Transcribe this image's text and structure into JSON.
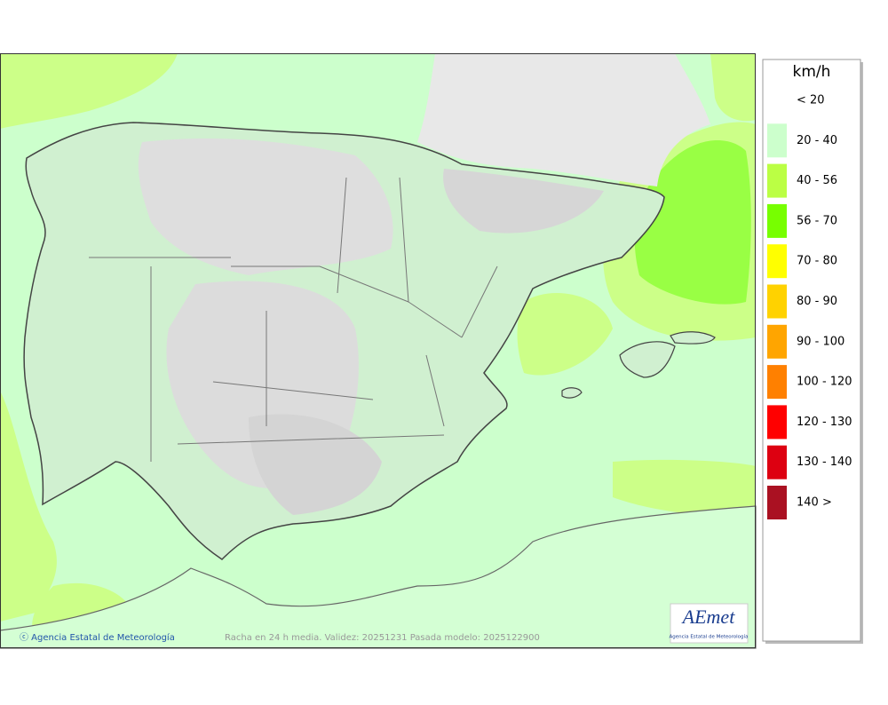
{
  "map": {
    "copyright": "ⓒ Agencia Estatal de Meteorología",
    "caption": "Racha en 24 h media. Validez: 20251231 Pasada modelo: 2025122900",
    "logo": {
      "text": "AEmet",
      "subtitle": "Agencia Estatal de Meteorología"
    }
  },
  "legend": {
    "title": "km/h",
    "items": [
      {
        "label": "< 20",
        "color": "#ffffff"
      },
      {
        "label": "20 - 40",
        "color": "#ccffcc"
      },
      {
        "label": "40 - 56",
        "color": "#bbff44"
      },
      {
        "label": "56 - 70",
        "color": "#77ff00"
      },
      {
        "label": "70 - 80",
        "color": "#ffff00"
      },
      {
        "label": "80 - 90",
        "color": "#ffd200"
      },
      {
        "label": "90 - 100",
        "color": "#ffa500"
      },
      {
        "label": "100 - 120",
        "color": "#ff8000"
      },
      {
        "label": "120 - 130",
        "color": "#ff0000"
      },
      {
        "label": "130 - 140",
        "color": "#dd0011"
      },
      {
        "label": "140 >",
        "color": "#aa1122"
      }
    ]
  }
}
